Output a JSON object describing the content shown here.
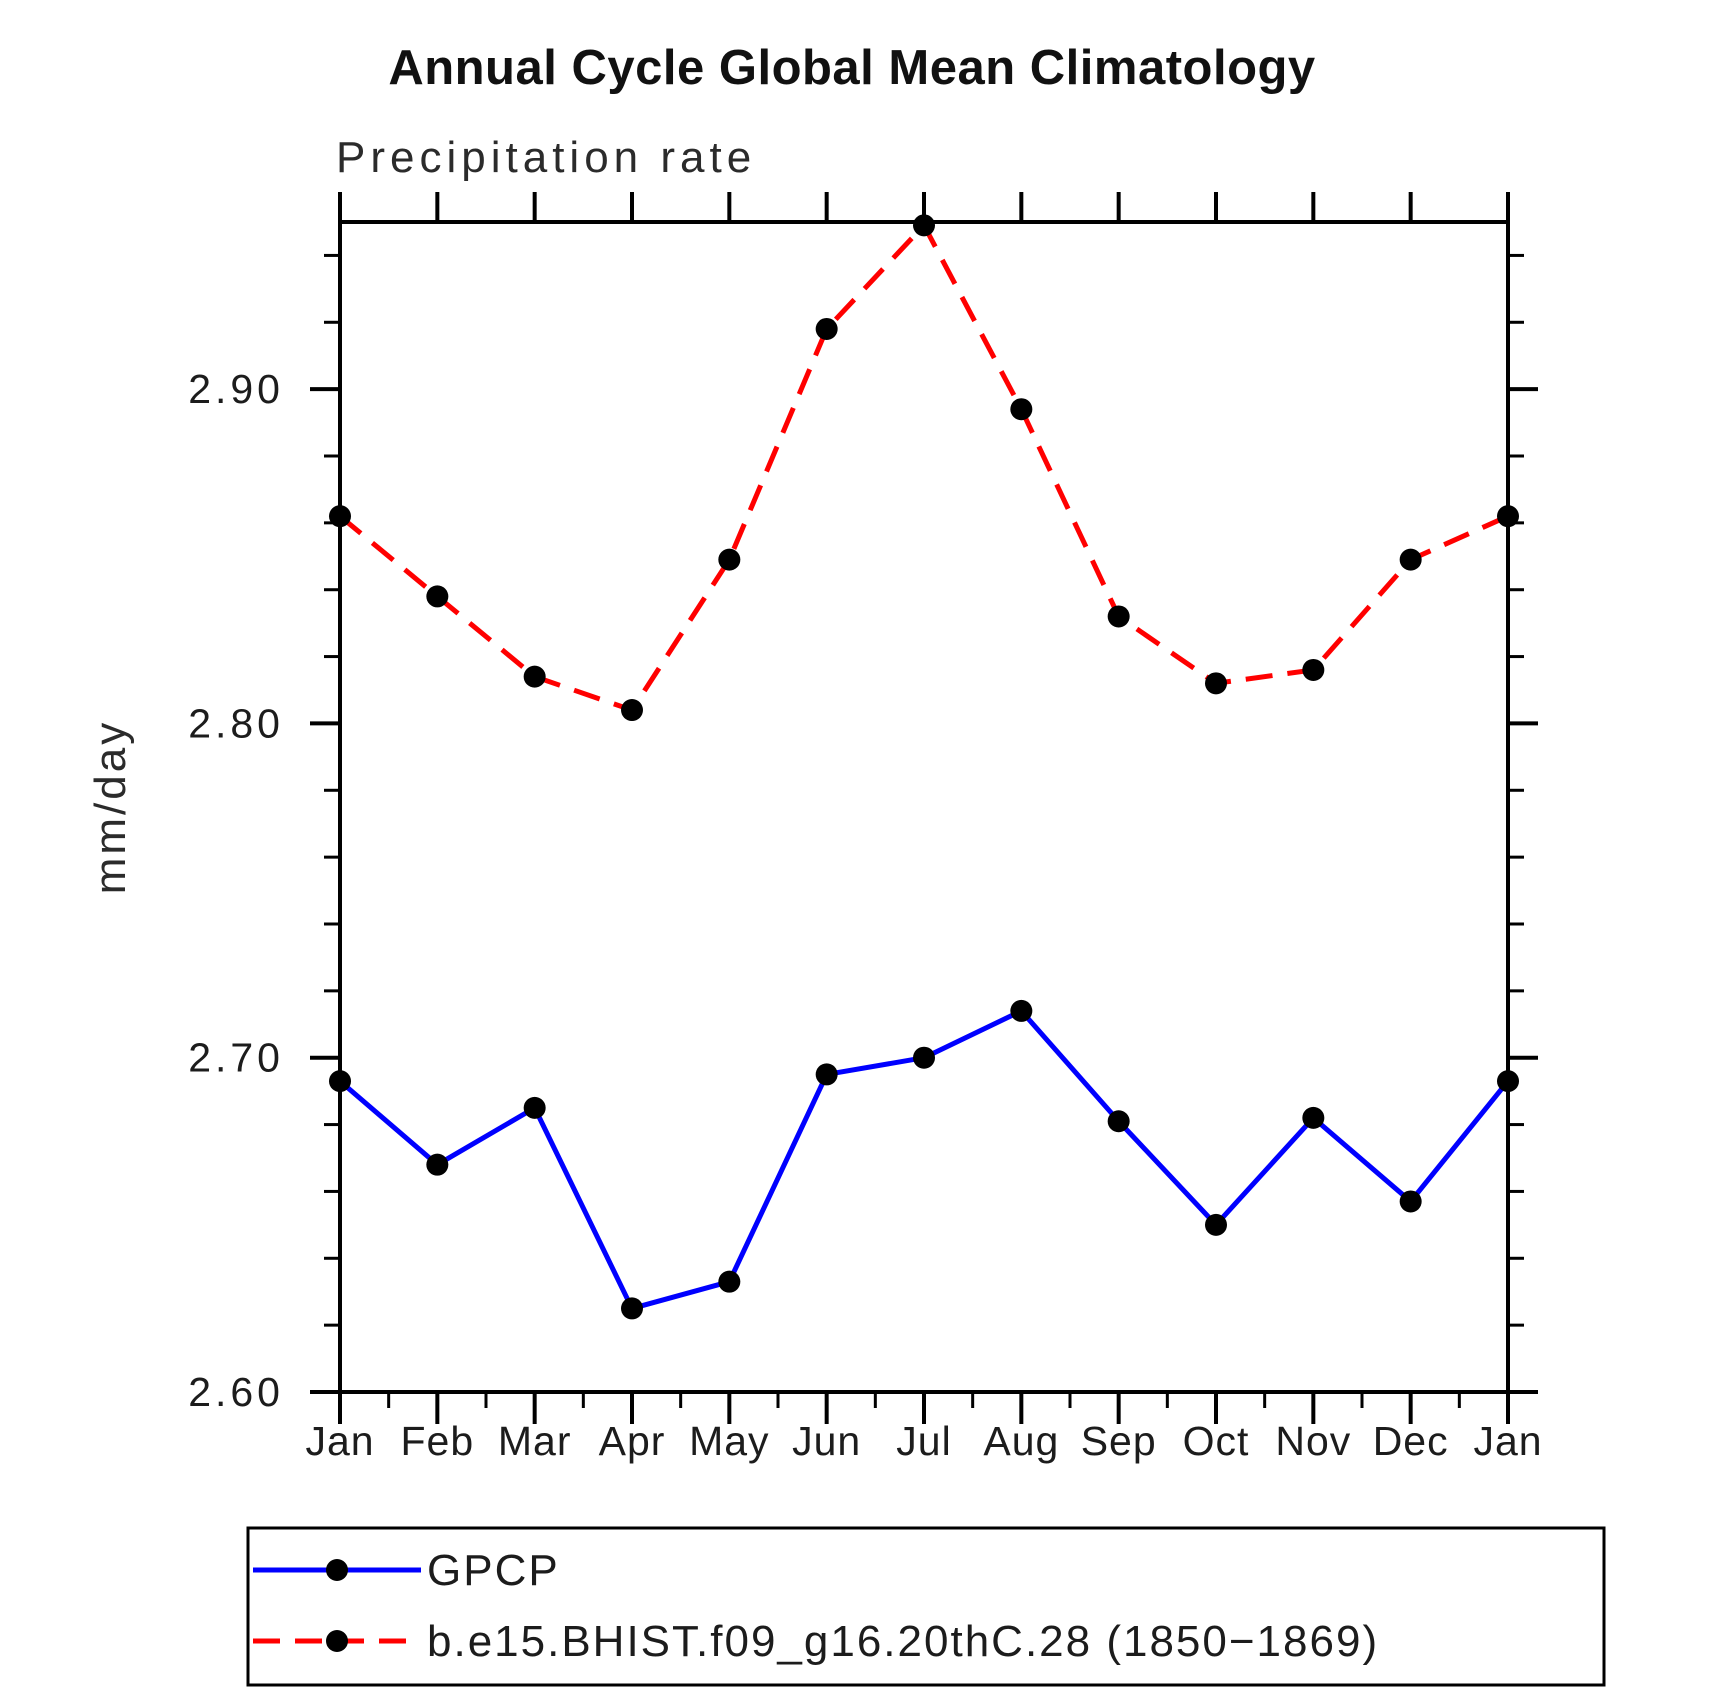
{
  "page": {
    "background": "#ffffff",
    "axis_color": "#000000",
    "marker_color": "#000000"
  },
  "chart_data": {
    "type": "line",
    "title": "Annual Cycle Global Mean Climatology",
    "subtitle": "Precipitation rate",
    "ylabel": "mm/day",
    "xlabel": "",
    "categories": [
      "Jan",
      "Feb",
      "Mar",
      "Apr",
      "May",
      "Jun",
      "Jul",
      "Aug",
      "Sep",
      "Oct",
      "Nov",
      "Dec",
      "Jan"
    ],
    "series": [
      {
        "name": "GPCP",
        "color": "#0000ff",
        "line_style": "solid",
        "marker": "circle",
        "marker_color": "#000000",
        "values": [
          2.693,
          2.668,
          2.685,
          2.625,
          2.633,
          2.695,
          2.7,
          2.714,
          2.681,
          2.65,
          2.682,
          2.657,
          2.693
        ]
      },
      {
        "name": "b.e15.BHIST.f09_g16.20thC.28 (1850−1869)",
        "color": "#ff0000",
        "line_style": "dashed",
        "marker": "circle",
        "marker_color": "#000000",
        "values": [
          2.862,
          2.838,
          2.814,
          2.804,
          2.849,
          2.918,
          2.949,
          2.894,
          2.832,
          2.812,
          2.816,
          2.849,
          2.862
        ]
      }
    ],
    "ylim": [
      2.6,
      2.95
    ],
    "ytick_labels": [
      "2.60",
      "2.70",
      "2.80",
      "2.90"
    ],
    "ytick_values": [
      2.6,
      2.7,
      2.8,
      2.9
    ],
    "y_minor_step": 0.02,
    "x_minor_step": 0.5,
    "grid": false,
    "legend_position": "bottom"
  }
}
